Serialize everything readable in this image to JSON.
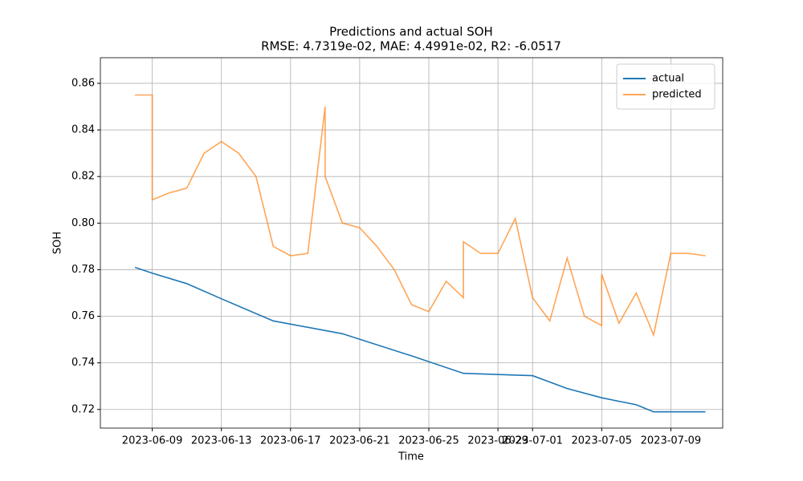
{
  "chart_data": {
    "type": "line",
    "title": "Predictions and actual SOH",
    "subtitle": "RMSE: 4.7319e-02, MAE: 4.4991e-02, R2: -6.0517",
    "xlabel": "Time",
    "ylabel": "SOH",
    "xlim": [
      "2023-06-06",
      "2023-07-12"
    ],
    "xticks": [
      "2023-06-09",
      "2023-06-13",
      "2023-06-17",
      "2023-06-21",
      "2023-06-25",
      "2023-06-29",
      "2023-07-01",
      "2023-07-05",
      "2023-07-09"
    ],
    "ylim": [
      0.712,
      0.871
    ],
    "yticks": [
      0.72,
      0.74,
      0.76,
      0.78,
      {
        "value": 0.8,
        "label": "0.80"
      },
      0.82,
      0.84,
      0.86
    ],
    "grid": true,
    "legend": "upper right",
    "series": [
      {
        "name": "actual",
        "color": "#1f77b4",
        "alpha": 1,
        "x": [
          "2023-06-08",
          "2023-06-09",
          "2023-06-11",
          "2023-06-13",
          "2023-06-16",
          "2023-06-20",
          "2023-06-24",
          "2023-06-27",
          "2023-07-01",
          "2023-07-03",
          "2023-07-05",
          "2023-07-07",
          "2023-07-08",
          "2023-07-11"
        ],
        "values": [
          0.781,
          0.7785,
          0.774,
          0.7675,
          0.758,
          0.7525,
          0.743,
          0.7355,
          0.7345,
          0.729,
          0.725,
          0.722,
          0.719,
          0.719
        ]
      },
      {
        "name": "predicted",
        "color": "#ff7f0e",
        "alpha": 0.7,
        "x": [
          "2023-06-08",
          "2023-06-09",
          "2023-06-09",
          "2023-06-10",
          "2023-06-11",
          "2023-06-12",
          "2023-06-13",
          "2023-06-14",
          "2023-06-15",
          "2023-06-16",
          "2023-06-17",
          "2023-06-18",
          "2023-06-19",
          "2023-06-19",
          "2023-06-20",
          "2023-06-21",
          "2023-06-22",
          "2023-06-23",
          "2023-06-24",
          "2023-06-25",
          "2023-06-26",
          "2023-06-27",
          "2023-06-27",
          "2023-06-28",
          "2023-06-29",
          "2023-06-30",
          "2023-07-01",
          "2023-07-02",
          "2023-07-03",
          "2023-07-04",
          "2023-07-05",
          "2023-07-05",
          "2023-07-06",
          "2023-07-07",
          "2023-07-08",
          "2023-07-09",
          "2023-07-10",
          "2023-07-11"
        ],
        "values": [
          0.855,
          0.855,
          0.81,
          0.813,
          0.815,
          0.83,
          0.835,
          0.83,
          0.82,
          0.79,
          0.786,
          0.787,
          0.85,
          0.82,
          0.8,
          0.798,
          0.79,
          0.78,
          0.765,
          0.762,
          0.775,
          0.768,
          0.792,
          0.787,
          0.787,
          0.802,
          0.768,
          0.758,
          0.785,
          0.76,
          0.756,
          0.778,
          0.757,
          0.77,
          0.752,
          0.787,
          0.787,
          0.786
        ]
      }
    ]
  }
}
